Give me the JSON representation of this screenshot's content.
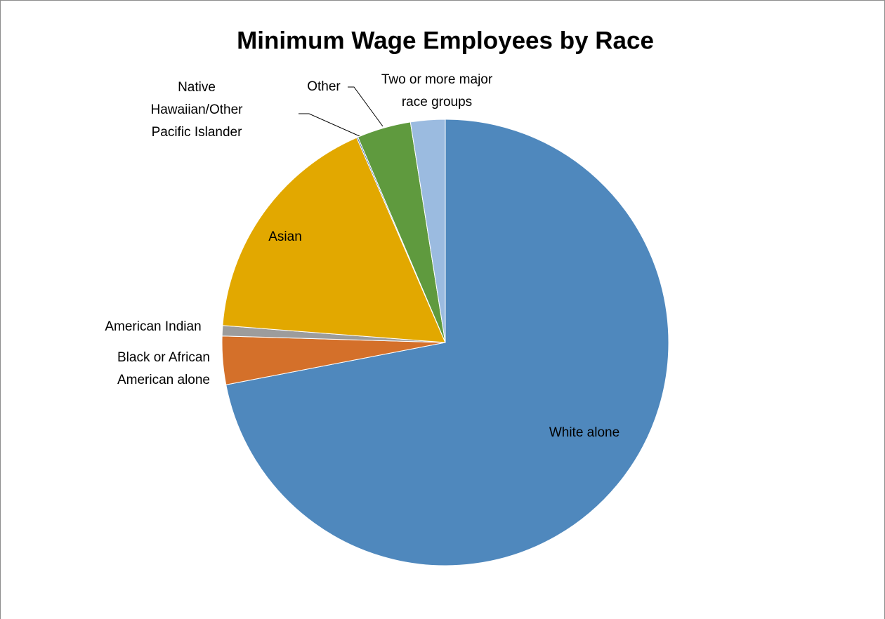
{
  "chart_data": {
    "type": "pie",
    "title": "Minimum Wage Employees by Race",
    "categories": [
      "White alone",
      "Black or African American alone",
      "American Indian",
      "Asian",
      "Native Hawaiian/Other Pacific Islander",
      "Other",
      "Two or more major race groups"
    ],
    "values": [
      72,
      3.5,
      0.75,
      17.3,
      0.1,
      3.9,
      2.5
    ],
    "colors": [
      "#4f88bd",
      "#d4702a",
      "#9c9c9c",
      "#e2a800",
      "#3a66a8",
      "#5f9a3e",
      "#9bbbe0"
    ]
  }
}
